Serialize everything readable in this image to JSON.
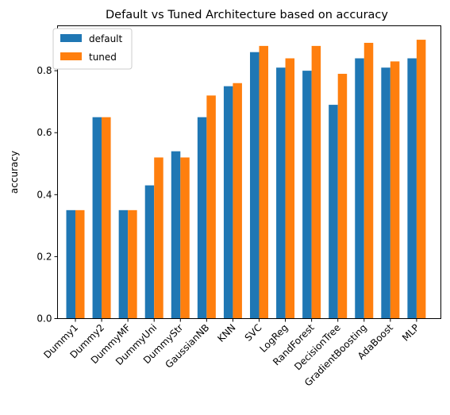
{
  "chart_data": {
    "type": "bar",
    "title": "Default vs Tuned Architecture based on accuracy",
    "xlabel": "",
    "ylabel": "accuracy",
    "ylim": [
      0,
      0.945
    ],
    "yticks": [
      "0.0",
      "0.2",
      "0.4",
      "0.6",
      "0.8"
    ],
    "grid": false,
    "legend_position": "top-left",
    "categories": [
      "Dummy1",
      "Dummy2",
      "DummyMF",
      "DummyUni",
      "DummyStr",
      "GaussianNB",
      "KNN",
      "SVC",
      "LogReg",
      "RandForest",
      "DecisionTree",
      "GradientBoosting",
      "AdaBoost",
      "MLP"
    ],
    "series": [
      {
        "name": "default",
        "color": "#1f77b4",
        "values": [
          0.35,
          0.65,
          0.35,
          0.43,
          0.54,
          0.65,
          0.75,
          0.86,
          0.81,
          0.8,
          0.69,
          0.84,
          0.81,
          0.84
        ]
      },
      {
        "name": "tuned",
        "color": "#ff7f0e",
        "values": [
          0.35,
          0.65,
          0.35,
          0.52,
          0.52,
          0.72,
          0.76,
          0.88,
          0.84,
          0.88,
          0.79,
          0.89,
          0.83,
          0.9
        ]
      }
    ]
  }
}
